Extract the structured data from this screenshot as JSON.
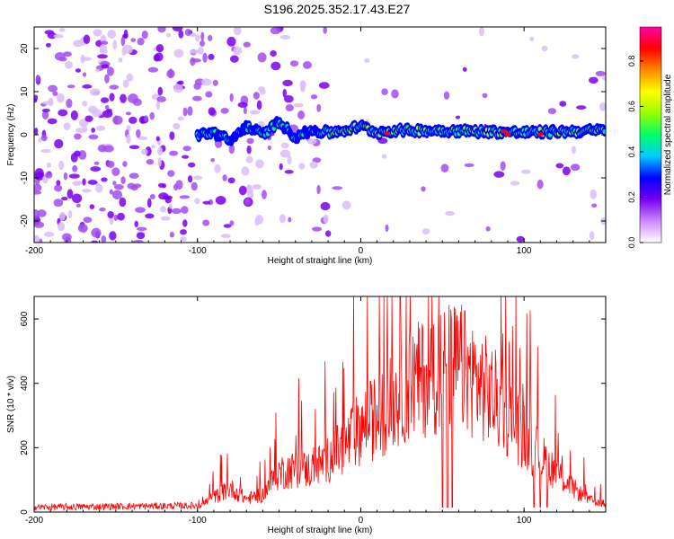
{
  "title": "S196.2025.352.17.43.E27",
  "chart_data": [
    {
      "type": "heatmap",
      "xlabel": "Height of straight line (km)",
      "ylabel": "Frequency (Hz)",
      "xlim": [
        -200,
        150
      ],
      "ylim": [
        -25,
        25
      ],
      "xticks": [
        "-200",
        "-100",
        "0",
        "100"
      ],
      "yticks": [
        "-20",
        "-10",
        "0",
        "10",
        "20"
      ],
      "xtick_values": [
        -200,
        -100,
        0,
        100
      ],
      "ytick_values": [
        -20,
        -10,
        0,
        10,
        20
      ],
      "colorbar": {
        "label": "Normalized spectral amplitude",
        "range": [
          0.0,
          0.95
        ],
        "ticks": [
          "0.0",
          "0.2",
          "0.4",
          "0.6",
          "0.8"
        ],
        "tick_values": [
          0.0,
          0.2,
          0.4,
          0.6,
          0.8
        ],
        "colormap": [
          "#ffffff",
          "#cc88ff",
          "#7700ee",
          "#0000ff",
          "#00ccff",
          "#00ff66",
          "#99ff00",
          "#ffff00",
          "#ff8800",
          "#ff0000",
          "#ff00aa"
        ]
      },
      "ridge": {
        "description_values": "frequency of the dominant spectral ridge vs height",
        "x": [
          -100,
          -90,
          -80,
          -70,
          -60,
          -50,
          -40,
          -30,
          -20,
          -10,
          0,
          10,
          20,
          50,
          100,
          150
        ],
        "y": [
          0,
          0.5,
          -1.5,
          2,
          0,
          3,
          -0.5,
          1,
          0.5,
          1,
          2,
          0.5,
          1,
          1,
          0.5,
          1
        ]
      }
    },
    {
      "type": "line",
      "xlabel": "Height of straight line (km)",
      "ylabel": "SNR (10 * v/v)",
      "xlim": [
        -200,
        150
      ],
      "ylim": [
        0,
        670
      ],
      "xticks": [
        "-200",
        "-100",
        "0",
        "100"
      ],
      "yticks": [
        "0",
        "200",
        "400",
        "600"
      ],
      "xtick_values": [
        -200,
        -100,
        0,
        100
      ],
      "ytick_values": [
        0,
        200,
        400,
        600
      ],
      "color": "#ff0000",
      "envelope": {
        "x": [
          -200,
          -100,
          -90,
          -80,
          -70,
          -60,
          -50,
          -40,
          -30,
          -20,
          -10,
          0,
          10,
          20,
          30,
          40,
          50,
          60,
          70,
          80,
          90,
          100,
          110,
          120,
          130,
          140,
          150
        ],
        "y": [
          15,
          20,
          55,
          90,
          50,
          65,
          150,
          160,
          160,
          200,
          250,
          320,
          360,
          420,
          480,
          510,
          540,
          550,
          500,
          440,
          370,
          290,
          210,
          150,
          90,
          45,
          30
        ]
      },
      "dropouts_x": [
        50,
        53,
        56,
        106,
        110,
        114
      ]
    }
  ]
}
